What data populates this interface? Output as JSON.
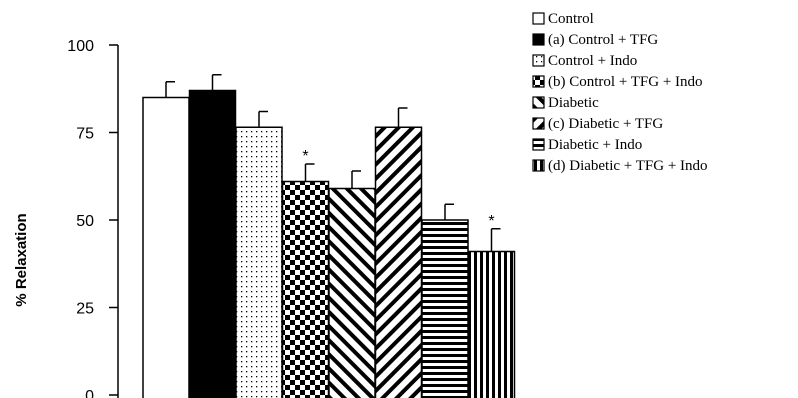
{
  "chart_data": {
    "type": "bar",
    "title": "",
    "xlabel": "",
    "ylabel": "% Relaxation",
    "ylim": [
      0,
      100
    ],
    "yticks": [
      0,
      25,
      50,
      75,
      100
    ],
    "ytick_labels": [
      "0",
      "25",
      "50",
      "75",
      "100"
    ],
    "grid": false,
    "legend_position": "top-right",
    "categories": [
      "Control",
      "(a) Control + TFG",
      "Control + Indo",
      "(b) Control + TFG + Indo",
      "Diabetic",
      "(c) Diabetic + TFG",
      "Diabetic + Indo",
      "(d) Diabetic + TFG + Indo"
    ],
    "values": [
      85,
      87,
      76.5,
      61,
      59,
      76.5,
      50,
      41
    ],
    "errors": [
      4.5,
      4.5,
      4.5,
      5,
      5,
      5.5,
      4.5,
      6.5
    ],
    "patterns": [
      "white",
      "black",
      "dots",
      "checker",
      "diag-up",
      "diag-down",
      "horizontal",
      "vertical"
    ],
    "annotations": [
      "",
      "",
      "",
      "*",
      "",
      "",
      "",
      "*"
    ]
  }
}
